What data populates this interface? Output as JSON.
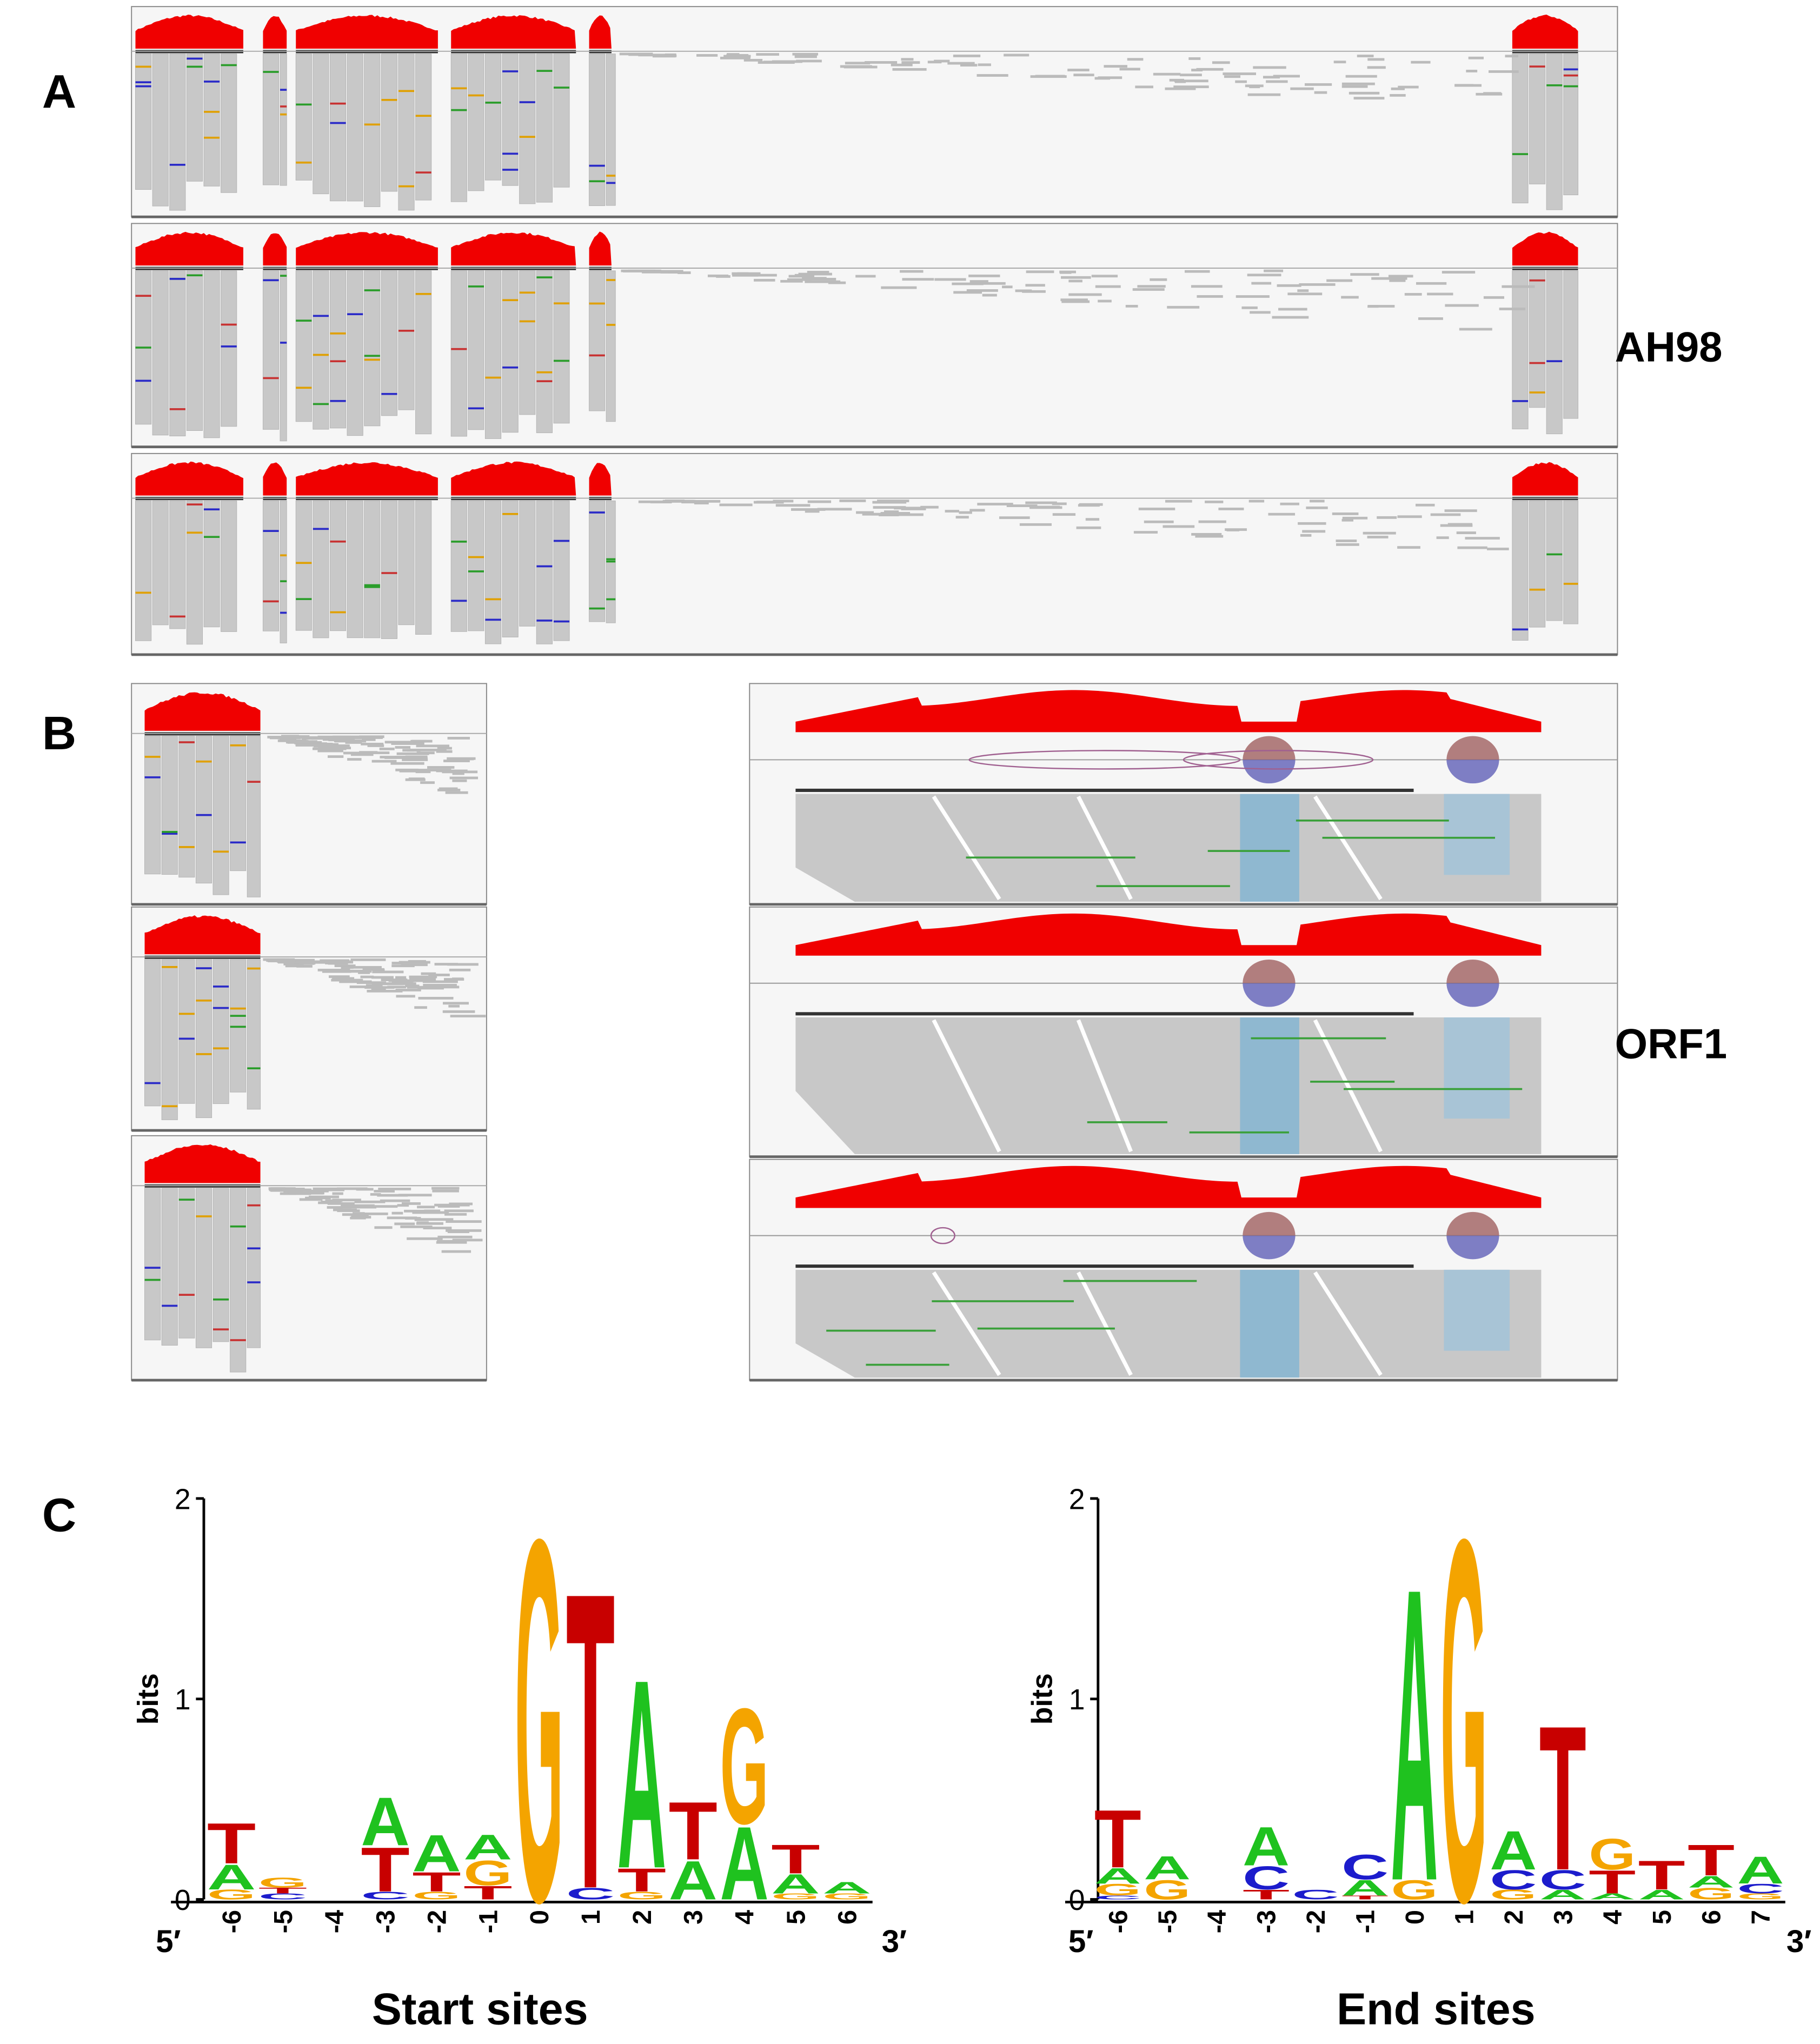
{
  "panels": [
    {
      "label": "A",
      "annotation": "AH98"
    },
    {
      "label": "B",
      "annotation": "ORF1"
    },
    {
      "label": "C"
    }
  ],
  "logo_colors": {
    "A": "#1fc21f",
    "C": "#1c1ccc",
    "G": "#f4a400",
    "T": "#c80000"
  },
  "logos": [
    {
      "xlabel": "Start sites",
      "ylabel": "bits",
      "ylim": [
        0,
        2
      ],
      "yticks": [
        0,
        1,
        2
      ],
      "end_labels": [
        "5′",
        "3′"
      ],
      "positions": [
        {
          "label": "-6",
          "letters": [
            {
              "base": "G",
              "bits": 0.05
            },
            {
              "base": "A",
              "bits": 0.13
            },
            {
              "base": "T",
              "bits": 0.21
            }
          ]
        },
        {
          "label": "-5",
          "letters": [
            {
              "base": "C",
              "bits": 0.03
            },
            {
              "base": "T",
              "bits": 0.03
            },
            {
              "base": "G",
              "bits": 0.05
            }
          ]
        },
        {
          "label": "-4",
          "letters": []
        },
        {
          "label": "-3",
          "letters": [
            {
              "base": "C",
              "bits": 0.04
            },
            {
              "base": "T",
              "bits": 0.23
            },
            {
              "base": "A",
              "bits": 0.25
            }
          ]
        },
        {
          "label": "-2",
          "letters": [
            {
              "base": "G",
              "bits": 0.04
            },
            {
              "base": "T",
              "bits": 0.1
            },
            {
              "base": "A",
              "bits": 0.19
            }
          ]
        },
        {
          "label": "-1",
          "letters": [
            {
              "base": "T",
              "bits": 0.07
            },
            {
              "base": "G",
              "bits": 0.13
            },
            {
              "base": "A",
              "bits": 0.13
            }
          ]
        },
        {
          "label": "0",
          "letters": [
            {
              "base": "G",
              "bits": 1.88
            }
          ]
        },
        {
          "label": "1",
          "letters": [
            {
              "base": "C",
              "bits": 0.06
            },
            {
              "base": "T",
              "bits": 1.54
            }
          ]
        },
        {
          "label": "2",
          "letters": [
            {
              "base": "G",
              "bits": 0.04
            },
            {
              "base": "T",
              "bits": 0.12
            },
            {
              "base": "A",
              "bits": 0.98
            }
          ]
        },
        {
          "label": "3",
          "letters": [
            {
              "base": "A",
              "bits": 0.2
            },
            {
              "base": "T",
              "bits": 0.3
            }
          ]
        },
        {
          "label": "4",
          "letters": [
            {
              "base": "A",
              "bits": 0.38
            },
            {
              "base": "G",
              "bits": 0.6
            }
          ]
        },
        {
          "label": "5",
          "letters": [
            {
              "base": "G",
              "bits": 0.03
            },
            {
              "base": "A",
              "bits": 0.1
            },
            {
              "base": "T",
              "bits": 0.15
            }
          ]
        },
        {
          "label": "6",
          "letters": [
            {
              "base": "G",
              "bits": 0.03
            },
            {
              "base": "A",
              "bits": 0.06
            }
          ]
        }
      ]
    },
    {
      "xlabel": "End sites",
      "ylabel": "bits",
      "ylim": [
        0,
        2
      ],
      "yticks": [
        0,
        1,
        2
      ],
      "end_labels": [
        "5′",
        "3′"
      ],
      "positions": [
        {
          "label": "-6",
          "letters": [
            {
              "base": "C",
              "bits": 0.02
            },
            {
              "base": "G",
              "bits": 0.06
            },
            {
              "base": "A",
              "bits": 0.08
            },
            {
              "base": "T",
              "bits": 0.3
            }
          ]
        },
        {
          "label": "-5",
          "letters": [
            {
              "base": "G",
              "bits": 0.1
            },
            {
              "base": "A",
              "bits": 0.12
            }
          ]
        },
        {
          "label": "-4",
          "letters": []
        },
        {
          "label": "-3",
          "letters": [
            {
              "base": "T",
              "bits": 0.05
            },
            {
              "base": "C",
              "bits": 0.12
            },
            {
              "base": "A",
              "bits": 0.2
            }
          ]
        },
        {
          "label": "-2",
          "letters": [
            {
              "base": "C",
              "bits": 0.05
            }
          ]
        },
        {
          "label": "-1",
          "letters": [
            {
              "base": "T",
              "bits": 0.02
            },
            {
              "base": "A",
              "bits": 0.08
            },
            {
              "base": "C",
              "bits": 0.13
            }
          ]
        },
        {
          "label": "0",
          "letters": [
            {
              "base": "G",
              "bits": 0.1
            },
            {
              "base": "A",
              "bits": 1.52
            }
          ]
        },
        {
          "label": "1",
          "letters": [
            {
              "base": "G",
              "bits": 1.88
            }
          ]
        },
        {
          "label": "2",
          "letters": [
            {
              "base": "G",
              "bits": 0.05
            },
            {
              "base": "C",
              "bits": 0.1
            },
            {
              "base": "A",
              "bits": 0.2
            }
          ]
        },
        {
          "label": "3",
          "letters": [
            {
              "base": "A",
              "bits": 0.05
            },
            {
              "base": "C",
              "bits": 0.1
            },
            {
              "base": "T",
              "bits": 0.75
            }
          ]
        },
        {
          "label": "4",
          "letters": [
            {
              "base": "A",
              "bits": 0.03
            },
            {
              "base": "T",
              "bits": 0.12
            },
            {
              "base": "G",
              "bits": 0.16
            }
          ]
        },
        {
          "label": "5",
          "letters": [
            {
              "base": "A",
              "bits": 0.05
            },
            {
              "base": "T",
              "bits": 0.15
            }
          ]
        },
        {
          "label": "6",
          "letters": [
            {
              "base": "G",
              "bits": 0.06
            },
            {
              "base": "A",
              "bits": 0.06
            },
            {
              "base": "T",
              "bits": 0.16
            }
          ]
        },
        {
          "label": "7",
          "letters": [
            {
              "base": "G",
              "bits": 0.03
            },
            {
              "base": "C",
              "bits": 0.05
            },
            {
              "base": "A",
              "bits": 0.14
            }
          ]
        }
      ]
    }
  ]
}
